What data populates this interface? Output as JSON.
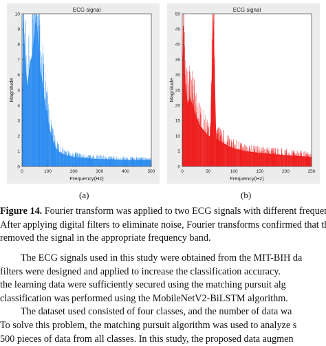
{
  "figure": {
    "panels": [
      {
        "label": "(a)"
      },
      {
        "label": "(b)"
      }
    ],
    "caption": {
      "label": "Figure 14.",
      "lines": [
        " Fourier transform was applied to two ECG signals with different frequency",
        "After applying digital filters to eliminate noise, Fourier transforms confirmed that the",
        "removed the signal in the appropriate frequency band."
      ]
    }
  },
  "body_text": {
    "lines": [
      "The ECG signals used in this study were obtained from the MIT-BIH da",
      "filters were designed and applied to increase the classification accuracy.",
      "the learning data were sufficiently secured using the matching pursuit alg",
      "classification was performed using the MobileNetV2-BiLSTM algorithm.",
      "The dataset used consisted of four classes, and the number of data wa",
      "To solve this problem, the matching pursuit algorithm was used to analyze s",
      "500 pieces of data from all classes. In this study, the proposed data augmen"
    ]
  },
  "chart_data": [
    {
      "type": "line",
      "title": "ECG signal",
      "xlabel": "Frequency(Hz)",
      "ylabel": "Magnitude",
      "xlim": [
        0,
        500
      ],
      "ylim": [
        0,
        10
      ],
      "xticks": [
        0,
        100,
        200,
        300,
        400,
        500
      ],
      "yticks": [
        0,
        1,
        2,
        3,
        4,
        5,
        6,
        7,
        8,
        9,
        10
      ],
      "grid": false,
      "color": "#2b8cf0",
      "series": [
        {
          "x": [
            0,
            5,
            10,
            20,
            30,
            40,
            50,
            55,
            60,
            70,
            80,
            90,
            100,
            110,
            120,
            130,
            140,
            150,
            175,
            200,
            250,
            300,
            350,
            400,
            450,
            500
          ],
          "y": [
            1.2,
            9.5,
            7.5,
            5.0,
            6.6,
            7.3,
            8.8,
            10.0,
            8.3,
            6.4,
            5.1,
            3.9,
            3.0,
            2.2,
            1.6,
            1.2,
            1.0,
            0.85,
            0.7,
            0.6,
            0.52,
            0.47,
            0.44,
            0.42,
            0.4,
            0.38
          ]
        }
      ]
    },
    {
      "type": "line",
      "title": "ECG signal",
      "xlabel": "Frequency(Hz)",
      "ylabel": "Magnitude",
      "xlim": [
        0,
        250
      ],
      "ylim": [
        0,
        50
      ],
      "xticks": [
        0,
        50,
        100,
        150,
        200,
        250
      ],
      "yticks": [
        0,
        5,
        10,
        15,
        20,
        25,
        30,
        35,
        40,
        45,
        50
      ],
      "grid": false,
      "color": "#ee1b1b",
      "series": [
        {
          "x": [
            0,
            2,
            5,
            10,
            15,
            20,
            25,
            30,
            35,
            40,
            45,
            50,
            55,
            60,
            65,
            70,
            80,
            90,
            100,
            120,
            150,
            200,
            250
          ],
          "y": [
            5,
            46,
            27,
            20,
            22,
            20,
            17,
            15,
            13,
            12,
            11,
            10,
            9.5,
            48,
            9.0,
            8.5,
            7.5,
            6.5,
            5.8,
            5.0,
            4.3,
            3.6,
            3.0
          ]
        }
      ]
    }
  ]
}
